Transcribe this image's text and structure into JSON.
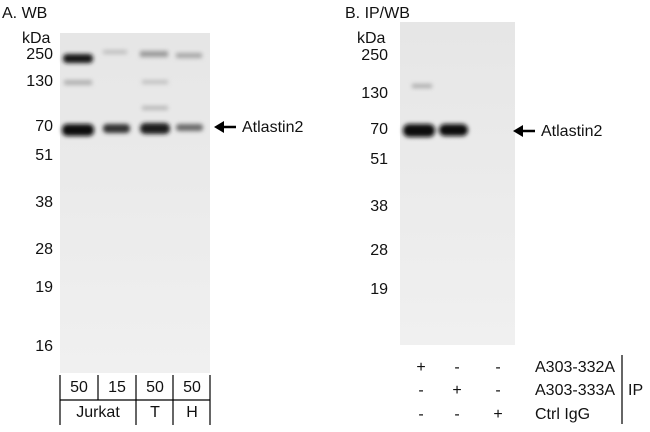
{
  "panels": [
    {
      "title": "A. WB",
      "unit": "kDa",
      "markers": [
        "250",
        "130",
        "70",
        "51",
        "38",
        "28",
        "19",
        "16"
      ],
      "target": "Atlastin2",
      "amounts": [
        "50",
        "15",
        "50",
        "50"
      ],
      "samples": [
        "Jurkat",
        "T",
        "H"
      ]
    },
    {
      "title": "B. IP/WB",
      "unit": "kDa",
      "markers": [
        "250",
        "130",
        "70",
        "51",
        "38",
        "28",
        "19"
      ],
      "target": "Atlastin2",
      "rows": [
        {
          "name": "A303-332A",
          "signs": [
            "+",
            "-",
            "-"
          ]
        },
        {
          "name": "A303-333A",
          "signs": [
            "-",
            "+",
            "-"
          ]
        },
        {
          "name": "Ctrl IgG",
          "signs": [
            "-",
            "-",
            "+"
          ]
        }
      ],
      "group": "IP"
    }
  ]
}
